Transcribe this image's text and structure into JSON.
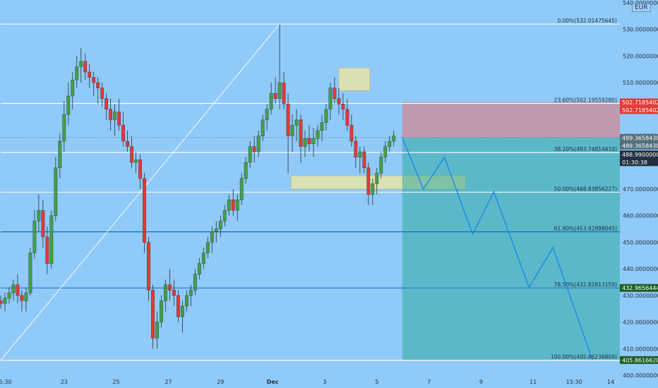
{
  "currency_badge": "EUR",
  "colors": {
    "background": "#90caf9",
    "up": "#43a047",
    "down": "#e53935",
    "wick": "#263238",
    "fib_line": "#ffffff",
    "blue_line": "#1565c0",
    "stop_zone": "#e57373",
    "target_zone": "#26a69a",
    "path": "#1e88e5",
    "highlight_zone": "#e8e5a8"
  },
  "chart_data": {
    "type": "candlestick",
    "title": "",
    "ylim": [
      400,
      540
    ],
    "y_ticks": [
      "540.00000000",
      "530.00000000",
      "520.00000000",
      "510.00000000",
      "500.00000000",
      "490.00000000",
      "480.00000000",
      "470.00000000",
      "460.00000000",
      "450.00000000",
      "440.00000000",
      "430.00000000",
      "420.00000000",
      "410.00000000",
      "400.00000000"
    ],
    "y_tick_values": [
      540,
      530,
      520,
      510,
      500,
      490,
      480,
      470,
      460,
      450,
      440,
      430,
      420,
      410,
      400
    ],
    "x_ticks": [
      "15:30",
      "23",
      "25",
      "27",
      "29",
      "Dec",
      "3",
      "5",
      "7",
      "9",
      "11",
      "15:30",
      "14"
    ],
    "x_tick_index": [
      2,
      45,
      82,
      119,
      156,
      193,
      230,
      267,
      304,
      341,
      378,
      407,
      433
    ],
    "bar_count": 440,
    "candles": [
      [
        0,
        428,
        430,
        425,
        427
      ],
      [
        3,
        427,
        431,
        424,
        429
      ],
      [
        6,
        429,
        433,
        427,
        431
      ],
      [
        9,
        431,
        436,
        428,
        434
      ],
      [
        12,
        434,
        438,
        427,
        430
      ],
      [
        15,
        430,
        432,
        424,
        428
      ],
      [
        18,
        428,
        433,
        424,
        431
      ],
      [
        21,
        431,
        448,
        430,
        446
      ],
      [
        24,
        446,
        462,
        444,
        458
      ],
      [
        27,
        458,
        468,
        454,
        462
      ],
      [
        30,
        462,
        466,
        448,
        452
      ],
      [
        33,
        452,
        456,
        438,
        442
      ],
      [
        36,
        442,
        462,
        440,
        460
      ],
      [
        39,
        460,
        482,
        458,
        478
      ],
      [
        42,
        478,
        491,
        474,
        488
      ],
      [
        45,
        488,
        503,
        484,
        498
      ],
      [
        48,
        498,
        510,
        494,
        505
      ],
      [
        51,
        505,
        514,
        500,
        511
      ],
      [
        54,
        511,
        520,
        508,
        516
      ],
      [
        57,
        516,
        523,
        510,
        518
      ],
      [
        60,
        518,
        521,
        511,
        514
      ],
      [
        63,
        514,
        517,
        508,
        512
      ],
      [
        66,
        512,
        514,
        505,
        510
      ],
      [
        69,
        510,
        512,
        502,
        508
      ],
      [
        72,
        508,
        510,
        501,
        504
      ],
      [
        75,
        504,
        506,
        496,
        500
      ],
      [
        78,
        500,
        504,
        492,
        496
      ],
      [
        81,
        496,
        502,
        490,
        499
      ],
      [
        84,
        499,
        504,
        492,
        494
      ],
      [
        87,
        494,
        499,
        486,
        488
      ],
      [
        90,
        488,
        492,
        484,
        486
      ],
      [
        93,
        486,
        490,
        478,
        480
      ],
      [
        96,
        480,
        484,
        476,
        481
      ],
      [
        99,
        481,
        483,
        470,
        474
      ],
      [
        102,
        474,
        476,
        446,
        450
      ],
      [
        105,
        450,
        452,
        428,
        432
      ],
      [
        108,
        432,
        434,
        410,
        414
      ],
      [
        111,
        414,
        424,
        410,
        420
      ],
      [
        114,
        420,
        430,
        418,
        428
      ],
      [
        117,
        428,
        436,
        424,
        434
      ],
      [
        120,
        434,
        440,
        428,
        432
      ],
      [
        123,
        432,
        436,
        426,
        430
      ],
      [
        126,
        430,
        432,
        420,
        422
      ],
      [
        129,
        422,
        428,
        416,
        426
      ],
      [
        132,
        426,
        432,
        424,
        430
      ],
      [
        135,
        430,
        434,
        426,
        432
      ],
      [
        138,
        432,
        440,
        430,
        438
      ],
      [
        141,
        438,
        444,
        436,
        442
      ],
      [
        144,
        442,
        448,
        440,
        446
      ],
      [
        147,
        446,
        452,
        444,
        450
      ],
      [
        150,
        450,
        456,
        446,
        454
      ],
      [
        153,
        454,
        458,
        450,
        455
      ],
      [
        156,
        455,
        460,
        452,
        458
      ],
      [
        159,
        458,
        464,
        456,
        462
      ],
      [
        162,
        462,
        468,
        460,
        466
      ],
      [
        165,
        466,
        470,
        460,
        462
      ],
      [
        168,
        462,
        468,
        458,
        466
      ],
      [
        171,
        466,
        476,
        464,
        474
      ],
      [
        174,
        474,
        482,
        472,
        480
      ],
      [
        177,
        480,
        488,
        478,
        486
      ],
      [
        180,
        486,
        490,
        480,
        484
      ],
      [
        183,
        484,
        492,
        482,
        490
      ],
      [
        186,
        490,
        498,
        488,
        496
      ],
      [
        189,
        496,
        502,
        492,
        500
      ],
      [
        192,
        500,
        510,
        498,
        506
      ],
      [
        195,
        506,
        512,
        502,
        504
      ],
      [
        198,
        504,
        532,
        500,
        510
      ],
      [
        201,
        510,
        514,
        500,
        502
      ],
      [
        204,
        502,
        506,
        476,
        490
      ],
      [
        207,
        490,
        498,
        484,
        494
      ],
      [
        210,
        494,
        500,
        488,
        496
      ],
      [
        213,
        496,
        498,
        480,
        486
      ],
      [
        216,
        486,
        492,
        482,
        489
      ],
      [
        219,
        489,
        494,
        484,
        487
      ],
      [
        222,
        487,
        493,
        482,
        489
      ],
      [
        225,
        489,
        494,
        486,
        492
      ],
      [
        228,
        492,
        498,
        488,
        495
      ],
      [
        231,
        495,
        502,
        492,
        500
      ],
      [
        234,
        500,
        510,
        496,
        508
      ],
      [
        237,
        508,
        512,
        502,
        504
      ],
      [
        240,
        504,
        508,
        498,
        502
      ],
      [
        243,
        502,
        506,
        496,
        500
      ],
      [
        246,
        500,
        504,
        492,
        494
      ],
      [
        249,
        494,
        498,
        486,
        488
      ],
      [
        252,
        488,
        490,
        478,
        482
      ],
      [
        255,
        482,
        486,
        476,
        484
      ],
      [
        258,
        484,
        486,
        476,
        478
      ],
      [
        261,
        478,
        480,
        464,
        468
      ],
      [
        264,
        468,
        474,
        464,
        472
      ],
      [
        267,
        472,
        478,
        468,
        476
      ],
      [
        270,
        476,
        484,
        474,
        482
      ],
      [
        273,
        482,
        488,
        480,
        486
      ],
      [
        276,
        486,
        490,
        484,
        488
      ],
      [
        279,
        488,
        492,
        486,
        490
      ]
    ],
    "fib_levels": [
      {
        "label": "0.00%(532.01475645)",
        "value": 532.01475645
      },
      {
        "label": "23.60%(502.19559280)",
        "value": 502.1955928
      },
      {
        "label": "38.20%(483.74814410)",
        "value": 483.7481441
      },
      {
        "label": "50.00%(468.83856227)",
        "value": 468.83856227
      },
      {
        "label": "61.80%(453.92898045)",
        "value": 453.92898045
      },
      {
        "label": "78.50%(432.82813159)",
        "value": 432.82813159
      },
      {
        "label": "100.00%(405.66236809)",
        "value": 405.66236809
      }
    ],
    "price_tags": [
      {
        "label": "502.71854022",
        "value": 502.71854022,
        "bg": "#e53935"
      },
      {
        "label": "502.71854022",
        "value": 502.71854022,
        "bg": "#e53935",
        "offset": 1
      },
      {
        "label": "489.36584303",
        "value": 489.36584303,
        "bg": "#546e7a"
      },
      {
        "label": "489.36584303",
        "value": 489.36584303,
        "bg": "#546e7a",
        "offset": 1
      },
      {
        "label": "488.99000000",
        "value": 488.99,
        "bg": "#1f2d3d",
        "offset": 2
      },
      {
        "label": "01:30:38",
        "value": 488.99,
        "bg": "#1f2d3d",
        "offset": 3
      },
      {
        "label": "432.96564444",
        "value": 432.96564444,
        "bg": "#1b5e20"
      },
      {
        "label": "405.86166208",
        "value": 405.86166208,
        "bg": "#1b5e20"
      }
    ],
    "blue_lines": [
      453.92898045,
      432.82813159
    ],
    "trend_line": [
      [
        0,
        405.66
      ],
      [
        198,
        532.01
      ]
    ],
    "position": {
      "entry": 489.36584303,
      "stop": 502.71854022,
      "target": 405.86166208,
      "x_start": 285,
      "x_end": 440
    },
    "projection_path": [
      [
        285,
        489.4
      ],
      [
        300,
        470
      ],
      [
        315,
        482
      ],
      [
        335,
        453
      ],
      [
        350,
        469
      ],
      [
        375,
        433
      ],
      [
        392,
        448
      ],
      [
        420,
        405.8
      ]
    ],
    "zones": [
      {
        "x0": 240,
        "x1": 262,
        "y0": 507,
        "y1": 515.5
      },
      {
        "x0": 206,
        "x1": 330,
        "y0": 470,
        "y1": 475
      }
    ],
    "dotted_price_line": 489.36584303
  }
}
